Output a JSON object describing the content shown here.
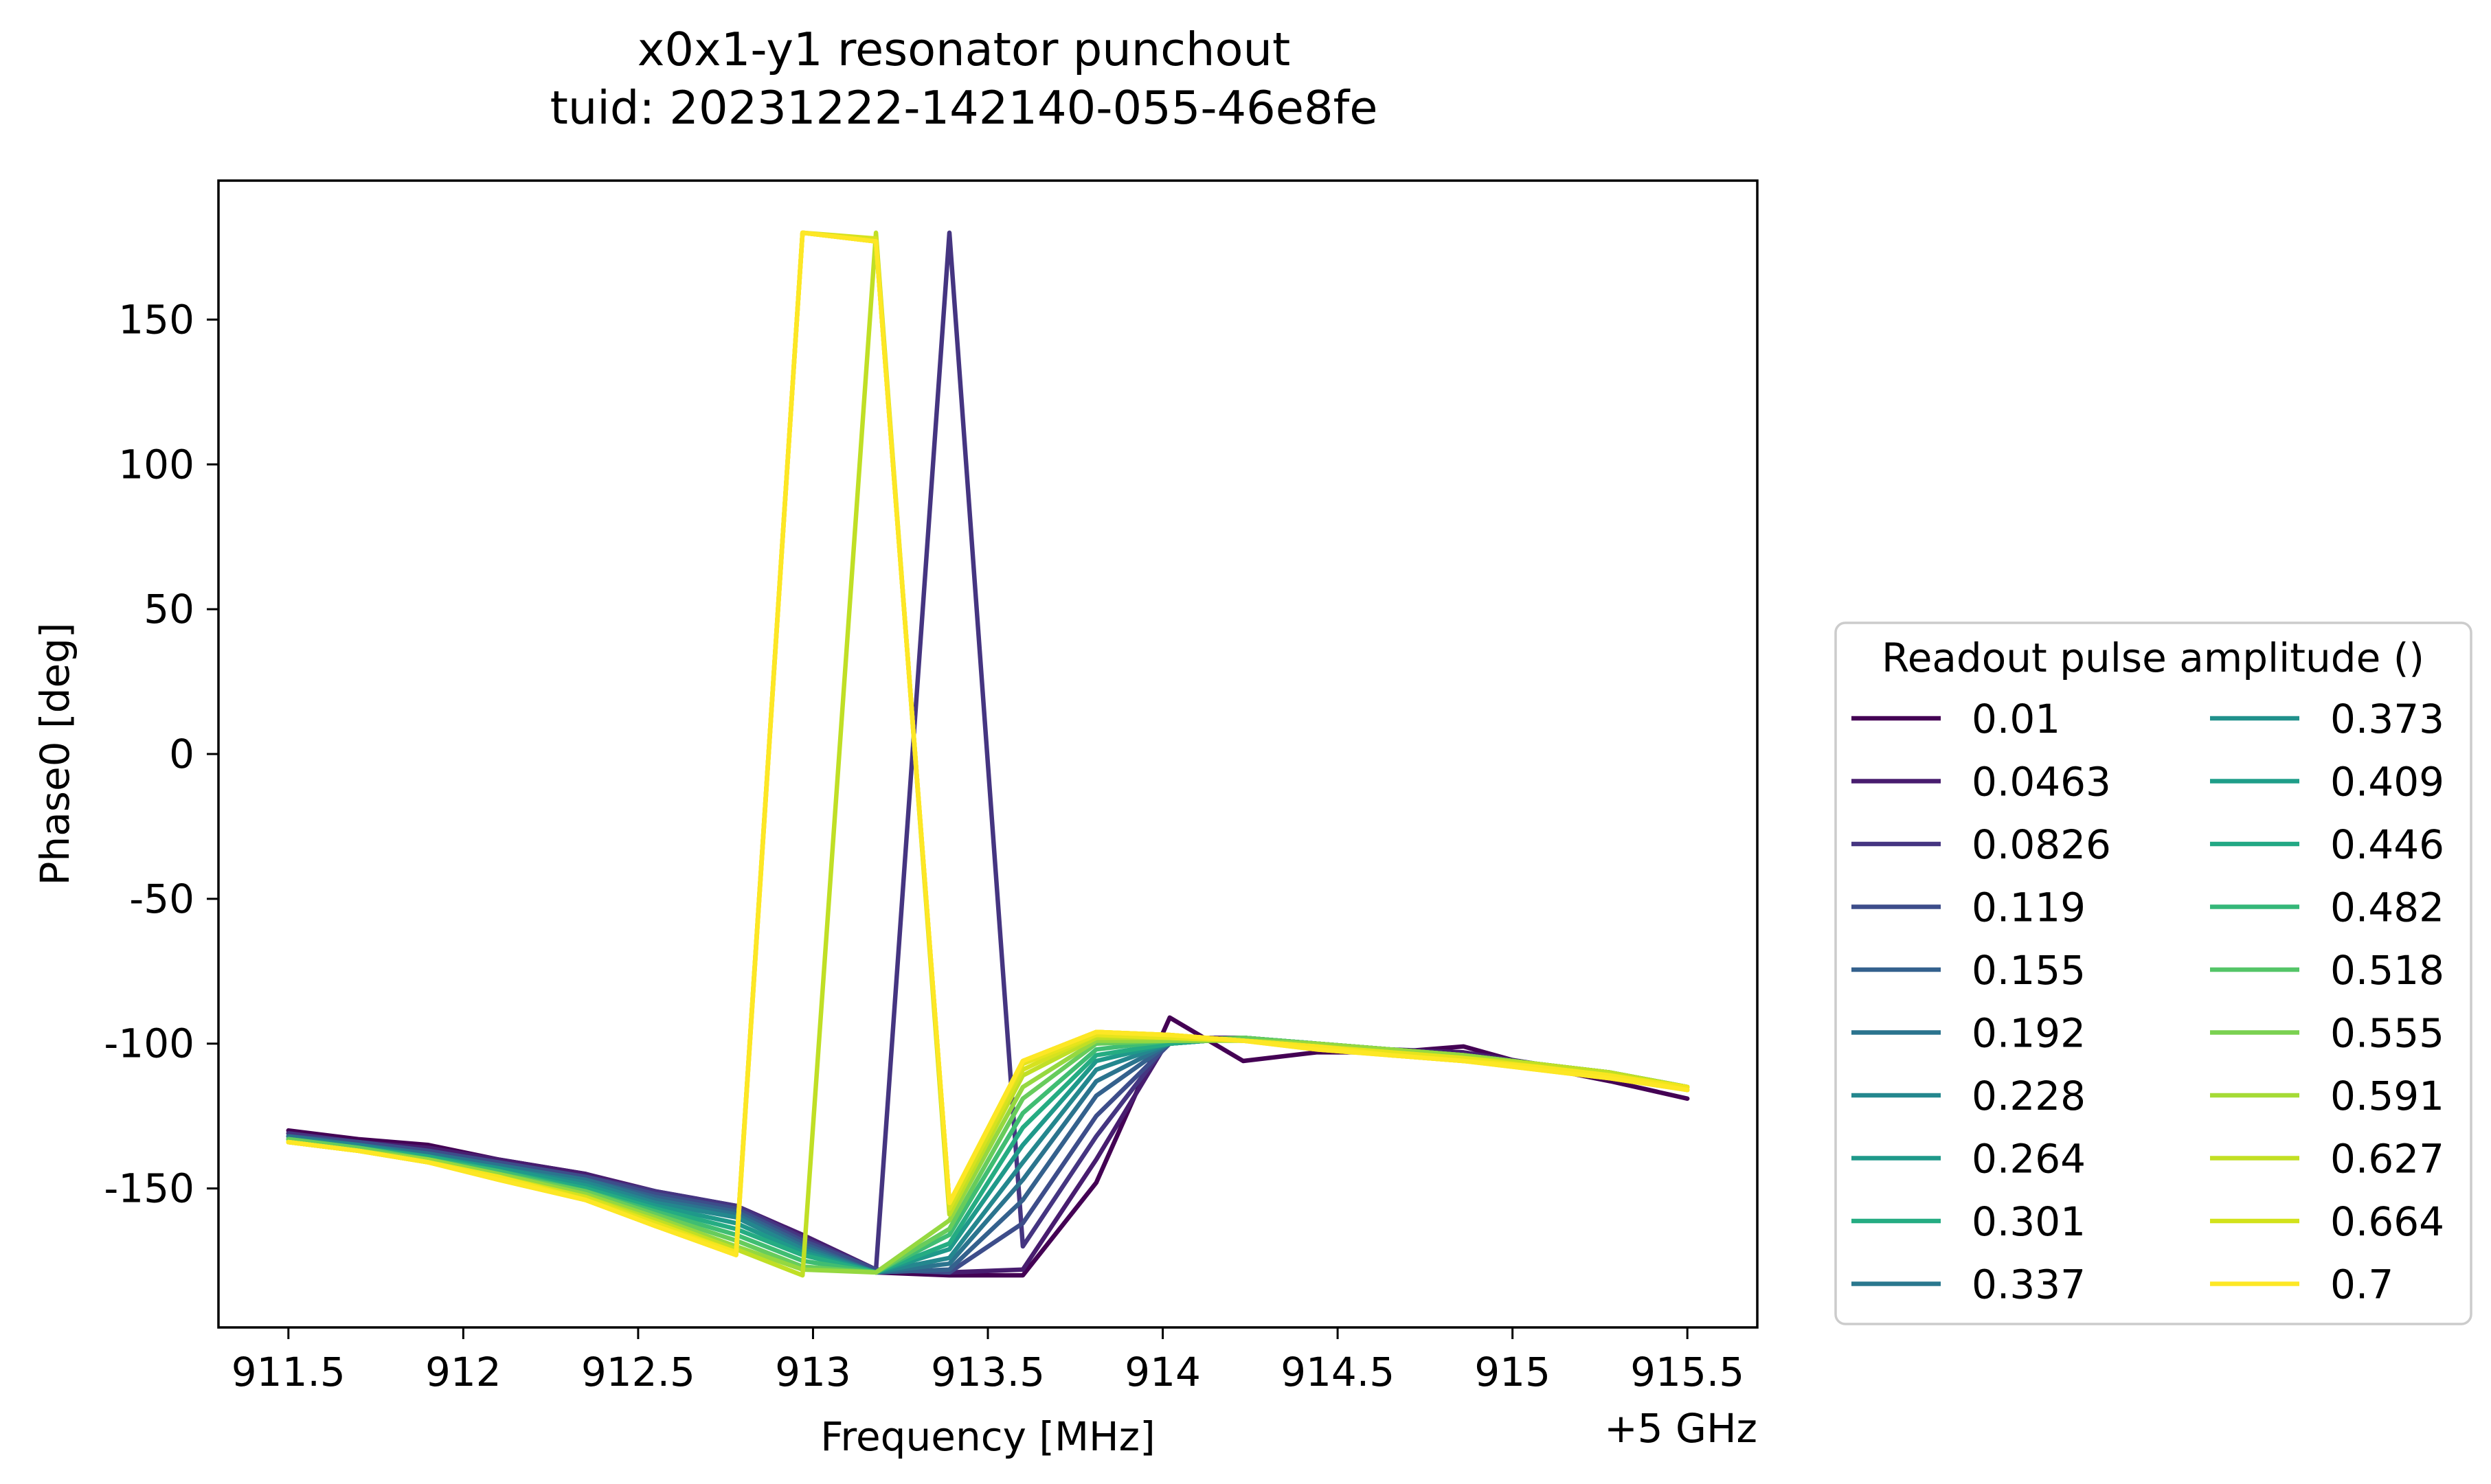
{
  "chart_data": {
    "type": "line",
    "title": "x0x1-y1 resonator punchout",
    "subtitle": "tuid: 20231222-142140-055-46e8fe",
    "xlabel": "Frequency [MHz]",
    "x_offset_label": "+5 GHz",
    "ylabel": "Phase0 [deg]",
    "xlim": [
      911.3,
      915.7
    ],
    "ylim": [
      -198,
      198
    ],
    "xticks": [
      911.5,
      912,
      912.5,
      913,
      913.5,
      914,
      914.5,
      915,
      915.5
    ],
    "xtick_labels": [
      "911.5",
      "912",
      "912.5",
      "913",
      "913.5",
      "914",
      "914.5",
      "915",
      "915.5"
    ],
    "yticks": [
      150,
      100,
      50,
      0,
      -50,
      -100,
      -150
    ],
    "ytick_labels": [
      "150",
      "100",
      "50",
      "0",
      "-50",
      "-100",
      "-150"
    ],
    "grid": false,
    "legend": {
      "title": "Readout pulse amplitude ()",
      "placement": "center-right outside",
      "columns": 2
    },
    "x": [
      911.5,
      911.7,
      911.9,
      912.1,
      912.35,
      912.55,
      912.78,
      912.97,
      913.18,
      913.39,
      913.6,
      913.81,
      914.02,
      914.23,
      914.44,
      914.65,
      914.86,
      915.07,
      915.28,
      915.5
    ],
    "series": [
      {
        "name": "0.01",
        "color": "#440154",
        "values": [
          -130,
          -133,
          -135,
          -140,
          -145,
          -152,
          -157,
          -166,
          -179,
          -180,
          -180,
          -148,
          -91,
          -106,
          -103,
          -103,
          -101,
          -108,
          -113,
          -119
        ]
      },
      {
        "name": "0.0463",
        "color": "#481d6f",
        "values": [
          -131,
          -134,
          -136,
          -140,
          -145,
          -151,
          -156,
          -166,
          -178,
          -179,
          -178,
          -140,
          -98,
          -98,
          -100,
          -102,
          -103,
          -107,
          -111,
          -116
        ]
      },
      {
        "name": "0.0826",
        "color": "#453581",
        "values": [
          -131,
          -134,
          -137,
          -141,
          -146,
          -151,
          -156,
          -167,
          -178,
          180,
          -170,
          -132,
          -99,
          -98,
          -100,
          -102,
          -104,
          -107,
          -110,
          -115
        ]
      },
      {
        "name": "0.119",
        "color": "#3d4d8a",
        "values": [
          -132,
          -134,
          -137,
          -141,
          -146,
          -152,
          -157,
          -168,
          -178,
          -179,
          -162,
          -125,
          -100,
          -98,
          -100,
          -102,
          -104,
          -107,
          -110,
          -115
        ]
      },
      {
        "name": "0.155",
        "color": "#34618d",
        "values": [
          -132,
          -135,
          -138,
          -142,
          -147,
          -153,
          -158,
          -169,
          -179,
          -178,
          -154,
          -118,
          -100,
          -98,
          -100,
          -102,
          -104,
          -107,
          -110,
          -115
        ]
      },
      {
        "name": "0.192",
        "color": "#2b748e",
        "values": [
          -132,
          -135,
          -138,
          -142,
          -147,
          -154,
          -159,
          -170,
          -179,
          -176,
          -147,
          -113,
          -100,
          -98,
          -100,
          -102,
          -104,
          -107,
          -110,
          -115
        ]
      },
      {
        "name": "0.228",
        "color": "#24878e",
        "values": [
          -133,
          -135,
          -139,
          -143,
          -148,
          -155,
          -160,
          -171,
          -179,
          -174,
          -141,
          -109,
          -100,
          -98,
          -100,
          -102,
          -104,
          -107,
          -110,
          -115
        ]
      },
      {
        "name": "0.264",
        "color": "#1f998a",
        "values": [
          -133,
          -136,
          -139,
          -143,
          -149,
          -156,
          -162,
          -172,
          -179,
          -171,
          -135,
          -106,
          -100,
          -98,
          -100,
          -102,
          -104,
          -107,
          -110,
          -115
        ]
      },
      {
        "name": "0.301",
        "color": "#25ac82",
        "values": [
          -133,
          -136,
          -139,
          -144,
          -150,
          -157,
          -164,
          -173,
          -179,
          -169,
          -129,
          -104,
          -100,
          -98,
          -100,
          -102,
          -104,
          -107,
          -110,
          -115
        ]
      },
      {
        "name": "0.337",
        "color": "#40bd72",
        "values": [
          -133,
          -136,
          -140,
          -144,
          -151,
          -158,
          -166,
          -175,
          -179,
          -166,
          -124,
          -102,
          -99,
          -98,
          -100,
          -102,
          -104,
          -107,
          -110,
          -115
        ]
      },
      {
        "name": "0.373",
        "color": "#67cc5c",
        "values": [
          -133,
          -136,
          -140,
          -145,
          -151,
          -159,
          -168,
          -177,
          -179,
          -164,
          -119,
          -100,
          -99,
          -98,
          -100,
          -102,
          -104,
          -107,
          -110,
          -115
        ]
      },
      {
        "name": "0.409",
        "color": "#95d840",
        "values": [
          -134,
          -137,
          -140,
          -145,
          -152,
          -160,
          -170,
          -178,
          -179,
          -161,
          -115,
          -99,
          -99,
          -99,
          -100,
          -102,
          -104,
          -107,
          -110,
          -115
        ]
      },
      {
        "name": "0.446",
        "color": "#c0df25",
        "values": [
          -134,
          -137,
          -141,
          -146,
          -153,
          -161,
          -171,
          -180,
          180,
          -159,
          -111,
          -98,
          -98,
          -99,
          -101,
          -103,
          -105,
          -107,
          -110,
          -115
        ]
      },
      {
        "name": "0.482",
        "color": "#d6e21f",
        "values": [
          -134,
          -137,
          -141,
          -146,
          -153,
          -162,
          -172,
          180,
          178,
          -157,
          -109,
          -97,
          -98,
          -99,
          -101,
          -103,
          -105,
          -108,
          -111,
          -115
        ]
      },
      {
        "name": "0.518",
        "color": "#e6e41c",
        "values": [
          -134,
          -137,
          -141,
          -146,
          -154,
          -162,
          -172,
          180,
          177,
          -155,
          -107,
          -97,
          -98,
          -99,
          -101,
          -103,
          -105,
          -108,
          -111,
          -115
        ]
      },
      {
        "name": "0.555",
        "color": "#f0e51c",
        "values": [
          -134,
          -137,
          -141,
          -146,
          -154,
          -163,
          -172,
          180,
          177,
          -155,
          -106,
          -96,
          -97,
          -99,
          -101,
          -104,
          -106,
          -108,
          -111,
          -115
        ]
      },
      {
        "name": "0.591",
        "color": "#f5e61e",
        "values": [
          -134,
          -137,
          -141,
          -146,
          -154,
          -163,
          -172,
          180,
          177,
          -155,
          -106,
          -96,
          -97,
          -99,
          -101,
          -104,
          -106,
          -108,
          -111,
          -116
        ]
      },
      {
        "name": "0.627",
        "color": "#f8e620",
        "values": [
          -134,
          -137,
          -141,
          -147,
          -154,
          -163,
          -173,
          180,
          177,
          -155,
          -106,
          -96,
          -97,
          -99,
          -101,
          -104,
          -106,
          -108,
          -111,
          -116
        ]
      },
      {
        "name": "0.664",
        "color": "#fae622",
        "values": [
          -134,
          -137,
          -141,
          -147,
          -154,
          -163,
          -173,
          180,
          177,
          -155,
          -106,
          -96,
          -97,
          -99,
          -102,
          -104,
          -106,
          -109,
          -112,
          -116
        ]
      },
      {
        "name": "0.7",
        "color": "#fde725",
        "values": [
          -134,
          -137,
          -141,
          -147,
          -154,
          -163,
          -173,
          180,
          177,
          -155,
          -106,
          -96,
          -97,
          -99,
          -102,
          -104,
          -106,
          -109,
          -112,
          -116
        ]
      }
    ],
    "legend_entry_colors": [
      "#440154",
      "#481d6f",
      "#453581",
      "#3d4d8a",
      "#34618d",
      "#2b748e",
      "#24878e",
      "#1f998a",
      "#25ac82",
      "#2a788e",
      "#21918c",
      "#1f9e89",
      "#22a884",
      "#35b779",
      "#54c568",
      "#7ad151",
      "#a5db36",
      "#c2df23",
      "#d2e21b",
      "#fde725"
    ]
  }
}
